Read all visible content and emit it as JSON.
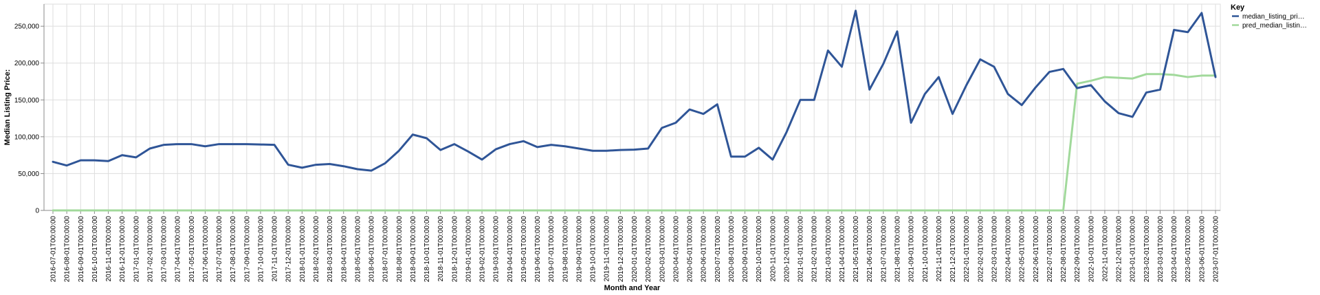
{
  "chart_data": {
    "type": "line",
    "xlabel": "Month and Year",
    "ylabel": "Median Listing Price:",
    "ylim": [
      0,
      280000
    ],
    "yticks": [
      0,
      50000,
      100000,
      150000,
      200000,
      250000
    ],
    "ytick_labels": [
      "0",
      "50,000",
      "100,000",
      "150,000",
      "200,000",
      "250,000"
    ],
    "grid": true,
    "legend_position": "top-right",
    "legend_title": "Key",
    "x": [
      "2016-07-01T00:00:00",
      "2016-08-01T00:00:00",
      "2016-09-01T00:00:00",
      "2016-10-01T00:00:00",
      "2016-11-01T00:00:00",
      "2016-12-01T00:00:00",
      "2017-01-01T00:00:00",
      "2017-02-01T00:00:00",
      "2017-03-01T00:00:00",
      "2017-04-01T00:00:00",
      "2017-05-01T00:00:00",
      "2017-06-01T00:00:00",
      "2017-07-01T00:00:00",
      "2017-08-01T00:00:00",
      "2017-09-01T00:00:00",
      "2017-10-01T00:00:00",
      "2017-11-01T00:00:00",
      "2017-12-01T00:00:00",
      "2018-01-01T00:00:00",
      "2018-02-01T00:00:00",
      "2018-03-01T00:00:00",
      "2018-04-01T00:00:00",
      "2018-05-01T00:00:00",
      "2018-06-01T00:00:00",
      "2018-07-01T00:00:00",
      "2018-08-01T00:00:00",
      "2018-09-01T00:00:00",
      "2018-10-01T00:00:00",
      "2018-11-01T00:00:00",
      "2018-12-01T00:00:00",
      "2019-01-01T00:00:00",
      "2019-02-01T00:00:00",
      "2019-03-01T00:00:00",
      "2019-04-01T00:00:00",
      "2019-05-01T00:00:00",
      "2019-06-01T00:00:00",
      "2019-07-01T00:00:00",
      "2019-08-01T00:00:00",
      "2019-09-01T00:00:00",
      "2019-10-01T00:00:00",
      "2019-11-01T00:00:00",
      "2019-12-01T00:00:00",
      "2020-01-01T00:00:00",
      "2020-02-01T00:00:00",
      "2020-03-01T00:00:00",
      "2020-04-01T00:00:00",
      "2020-05-01T00:00:00",
      "2020-06-01T00:00:00",
      "2020-07-01T00:00:00",
      "2020-08-01T00:00:00",
      "2020-09-01T00:00:00",
      "2020-10-01T00:00:00",
      "2020-11-01T00:00:00",
      "2020-12-01T00:00:00",
      "2021-01-01T00:00:00",
      "2021-02-01T00:00:00",
      "2021-03-01T00:00:00",
      "2021-04-01T00:00:00",
      "2021-05-01T00:00:00",
      "2021-06-01T00:00:00",
      "2021-07-01T00:00:00",
      "2021-08-01T00:00:00",
      "2021-09-01T00:00:00",
      "2021-10-01T00:00:00",
      "2021-11-01T00:00:00",
      "2021-12-01T00:00:00",
      "2022-01-01T00:00:00",
      "2022-02-01T00:00:00",
      "2022-03-01T00:00:00",
      "2022-04-01T00:00:00",
      "2022-05-01T00:00:00",
      "2022-06-01T00:00:00",
      "2022-07-01T00:00:00",
      "2022-08-01T00:00:00",
      "2022-09-01T00:00:00",
      "2022-10-01T00:00:00",
      "2022-11-01T00:00:00",
      "2022-12-01T00:00:00",
      "2023-01-01T00:00:00",
      "2023-02-01T00:00:00",
      "2023-03-01T00:00:00",
      "2023-04-01T00:00:00",
      "2023-05-01T00:00:00",
      "2023-06-01T00:00:00",
      "2023-07-01T00:00:00"
    ],
    "series": [
      {
        "name": "median_listing_pri…",
        "color": "#2f5597",
        "values": [
          66000,
          61000,
          68000,
          68000,
          67000,
          75000,
          72000,
          84000,
          89000,
          90000,
          90000,
          87000,
          90000,
          90000,
          90000,
          89500,
          89000,
          62000,
          58000,
          62000,
          63000,
          60000,
          56000,
          54000,
          64000,
          81000,
          103000,
          98000,
          82000,
          90000,
          80000,
          69000,
          83000,
          90000,
          94000,
          86000,
          89000,
          87000,
          84000,
          81000,
          81000,
          82000,
          82500,
          84000,
          112000,
          119000,
          137000,
          131000,
          144000,
          73000,
          73000,
          85000,
          69000,
          106000,
          150000,
          150000,
          217000,
          195000,
          271000,
          164000,
          199000,
          243000,
          119000,
          158000,
          181000,
          131000,
          170000,
          205000,
          195000,
          158000,
          143000,
          167000,
          188000,
          192000,
          166000,
          170000,
          148000,
          132000,
          127000,
          160000,
          164000,
          245000,
          242000,
          268000,
          181000
        ]
      },
      {
        "name": "pred_median_listin…",
        "color": "#a1d99b",
        "values": [
          0,
          0,
          0,
          0,
          0,
          0,
          0,
          0,
          0,
          0,
          0,
          0,
          0,
          0,
          0,
          0,
          0,
          0,
          0,
          0,
          0,
          0,
          0,
          0,
          0,
          0,
          0,
          0,
          0,
          0,
          0,
          0,
          0,
          0,
          0,
          0,
          0,
          0,
          0,
          0,
          0,
          0,
          0,
          0,
          0,
          0,
          0,
          0,
          0,
          0,
          0,
          0,
          0,
          0,
          0,
          0,
          0,
          0,
          0,
          0,
          0,
          0,
          0,
          0,
          0,
          0,
          0,
          0,
          0,
          0,
          0,
          0,
          0,
          0,
          172000,
          176000,
          181000,
          180000,
          179000,
          185000,
          185000,
          184000,
          181000,
          183000,
          183000
        ]
      }
    ]
  }
}
